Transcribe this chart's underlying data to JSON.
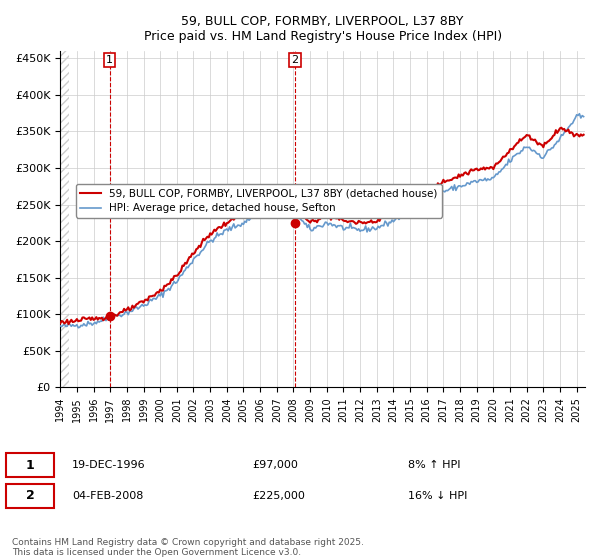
{
  "title": "59, BULL COP, FORMBY, LIVERPOOL, L37 8BY",
  "subtitle": "Price paid vs. HM Land Registry's House Price Index (HPI)",
  "ylabel_ticks": [
    "£0",
    "£50K",
    "£100K",
    "£150K",
    "£200K",
    "£250K",
    "£300K",
    "£350K",
    "£400K",
    "£450K"
  ],
  "ytick_values": [
    0,
    50000,
    100000,
    150000,
    200000,
    250000,
    300000,
    350000,
    400000,
    450000
  ],
  "ylim": [
    0,
    460000
  ],
  "xlim_start": 1994.0,
  "xlim_end": 2025.5,
  "sale1_year": 1996.97,
  "sale1_price": 97000,
  "sale1_label": "1",
  "sale2_year": 2008.09,
  "sale2_price": 225000,
  "sale2_label": "2",
  "legend_property": "59, BULL COP, FORMBY, LIVERPOOL, L37 8BY (detached house)",
  "legend_hpi": "HPI: Average price, detached house, Sefton",
  "annotation1_date": "19-DEC-1996",
  "annotation1_price": "£97,000",
  "annotation1_hpi": "8% ↑ HPI",
  "annotation2_date": "04-FEB-2008",
  "annotation2_price": "£225,000",
  "annotation2_hpi": "16% ↓ HPI",
  "footer": "Contains HM Land Registry data © Crown copyright and database right 2025.\nThis data is licensed under the Open Government Licence v3.0.",
  "property_line_color": "#cc0000",
  "hpi_line_color": "#6699cc",
  "vline_color": "#cc0000",
  "marker_color": "#cc0000",
  "hatch_color": "#dddddd",
  "background_hatch": true
}
